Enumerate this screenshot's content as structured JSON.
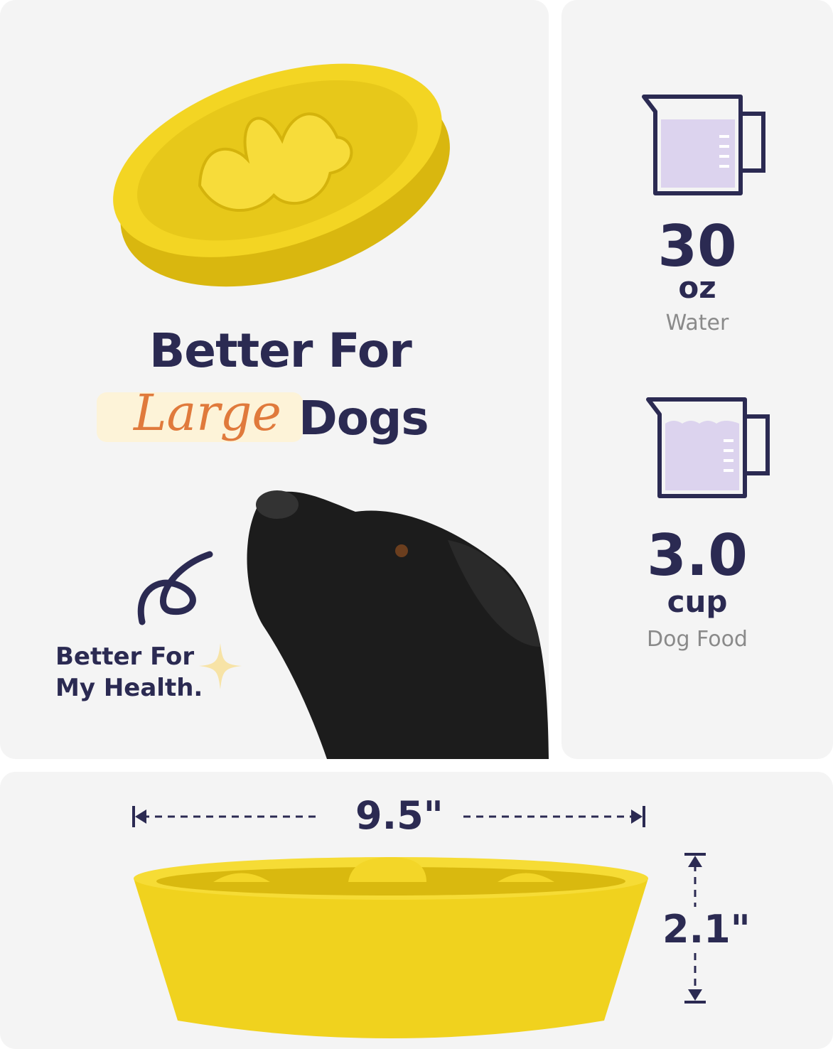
{
  "headline": {
    "line1": "Better For",
    "highlight": "Large",
    "line2_rest": "Dogs"
  },
  "badge": {
    "line1": "Better For",
    "line2": "My Health."
  },
  "water": {
    "value": "30",
    "unit": "oz",
    "label": "Water",
    "icon": "measuring-cup-icon"
  },
  "food": {
    "value": "3.0",
    "unit": "cup",
    "label": "Dog Food",
    "icon": "measuring-cup-food-icon"
  },
  "dimensions": {
    "width": "9.5\"",
    "height": "2.1\""
  },
  "colors": {
    "text": "#2b2a52",
    "accent": "#e07a3c",
    "highlight": "#fdf3d8",
    "bowl": "#f0d21e",
    "cup_fill": "#dcd3ee",
    "sparkle": "#f7e3a6"
  }
}
